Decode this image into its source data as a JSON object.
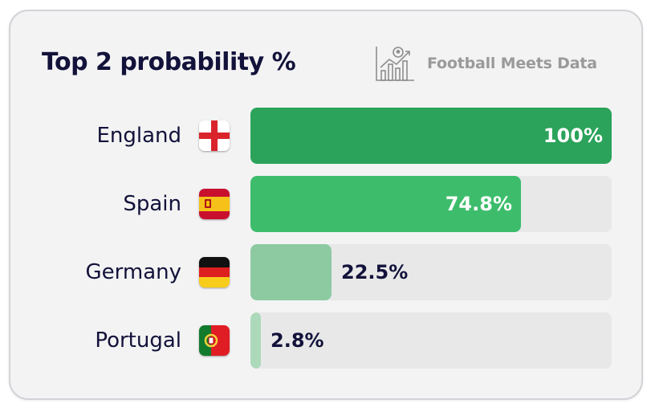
{
  "title": "Top 2 probability %",
  "brand": {
    "name": "Football Meets Data",
    "icon": "chart-football-icon"
  },
  "chart_data": {
    "type": "bar",
    "orientation": "horizontal",
    "title": "Top 2 probability %",
    "xlim": [
      0,
      100
    ],
    "categories": [
      "England",
      "Spain",
      "Germany",
      "Portugal"
    ],
    "values": [
      100,
      74.8,
      22.5,
      2.8
    ],
    "value_labels": [
      "100%",
      "74.8%",
      "22.5%",
      "2.8%"
    ],
    "flags": [
      "england-flag-icon",
      "spain-flag-icon",
      "germany-flag-icon",
      "portugal-flag-icon"
    ],
    "bar_colors": [
      "#2ba35a",
      "#3dbd6b",
      "#8dcaa2",
      "#acd9b9"
    ],
    "track_color": "#e8e8e9",
    "label_color_inside": "#ffffff",
    "label_color_outside": "#12123a"
  }
}
